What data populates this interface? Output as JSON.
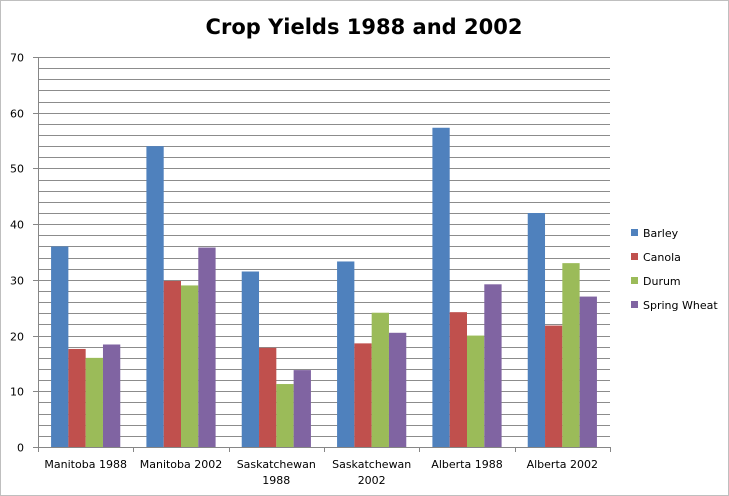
{
  "chart_data": {
    "type": "bar",
    "title": "Crop Yields 1988 and 2002",
    "xlabel": "",
    "ylabel": "",
    "ylim": [
      0,
      70
    ],
    "yticks": [
      0,
      10,
      20,
      30,
      40,
      50,
      60,
      70
    ],
    "minor_grid_step": 2,
    "grid": true,
    "legend_position": "right",
    "categories": [
      [
        "Manitoba 1988"
      ],
      [
        "Manitoba 2002"
      ],
      [
        "Saskatchewan",
        "1988"
      ],
      [
        "Saskatchewan",
        "2002"
      ],
      [
        "Alberta 1988"
      ],
      [
        "Alberta 2002"
      ]
    ],
    "series": [
      {
        "name": "Barley",
        "color": "#4f81bd",
        "values": [
          36,
          54,
          31.5,
          33.3,
          57.3,
          42
        ]
      },
      {
        "name": "Canola",
        "color": "#c0504d",
        "values": [
          17.6,
          29.8,
          17.8,
          18.6,
          24.2,
          21.8
        ]
      },
      {
        "name": "Durum",
        "color": "#9bbb59",
        "values": [
          16,
          29,
          11.3,
          24.1,
          20,
          33
        ]
      },
      {
        "name": "Spring Wheat",
        "color": "#8064a2",
        "values": [
          18.4,
          35.8,
          13.8,
          20.5,
          29.2,
          27
        ]
      }
    ]
  }
}
